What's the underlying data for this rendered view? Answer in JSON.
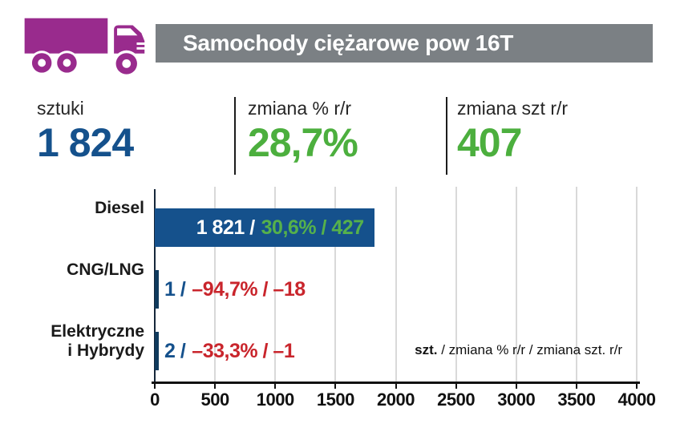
{
  "header": {
    "title": "Samochody ciężarowe pow 16T"
  },
  "colors": {
    "accent_blue": "#15518c",
    "green": "#4caf3e",
    "green_inside_bar": "#56b14b",
    "red_negative": "#c9252c",
    "stub_navy": "#0f3a5d",
    "truck_purple": "#992b8d",
    "header_gray": "#7b8084",
    "grid_gray": "#d9d9d9"
  },
  "stats": {
    "items": [
      {
        "label": "sztuki",
        "value": "1 824"
      },
      {
        "label": "zmiana % r/r",
        "value": "28,7%"
      },
      {
        "label": "zmiana szt r/r",
        "value": "407"
      }
    ]
  },
  "chart_data": {
    "type": "bar",
    "orientation": "horizontal",
    "title": "Samochody ciężarowe pow 16T",
    "xlim": [
      0,
      4000
    ],
    "x_ticks": [
      "0",
      "500",
      "1000",
      "1500",
      "2000",
      "2500",
      "3000",
      "3500",
      "4000"
    ],
    "grid": true,
    "legend": {
      "bold": "szt.",
      "rest": " / zmiana % r/r / zmiana szt. r/r"
    },
    "categories": [
      "Diesel",
      "CNG/LNG",
      "Elektryczne\ni Hybrydy"
    ],
    "series": [
      {
        "name": "szt.",
        "values": [
          1821,
          1,
          2
        ]
      },
      {
        "name": "zmiana % r/r",
        "values": [
          30.6,
          -94.7,
          -33.3
        ]
      },
      {
        "name": "zmiana szt. r/r",
        "values": [
          427,
          -18,
          -1
        ]
      }
    ],
    "rows": [
      {
        "category": "Diesel",
        "units": 1821,
        "units_label": "1 821 /",
        "change_label": "30,6% / 427",
        "label_position": "inside"
      },
      {
        "category": "CNG/LNG",
        "units": 1,
        "units_label": "1 /",
        "change_label": "–94,7% / –18",
        "label_position": "outside"
      },
      {
        "category": "Elektryczne\ni Hybrydy",
        "units": 2,
        "units_label": "2 /",
        "change_label": "–33,3% / –1",
        "label_position": "outside"
      }
    ]
  }
}
